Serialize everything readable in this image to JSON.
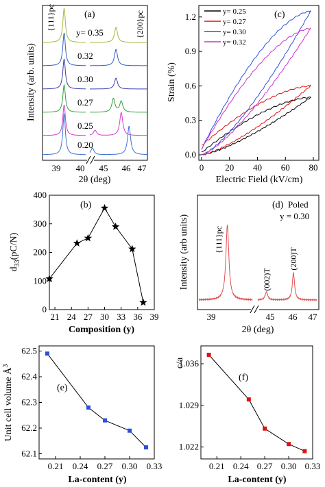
{
  "chart_data": [
    {
      "type": "line",
      "panel_label": "(a)",
      "xlabel": "2θ (deg)",
      "ylabel": "Intensity (arb. units)",
      "xticks": [
        "39",
        "40",
        "45",
        "46",
        "47"
      ],
      "peak_labels": [
        "{111}pc",
        "{200}pc"
      ],
      "series": [
        {
          "name": "y= 0.35",
          "color": "#9bbb3b",
          "peaks_2theta": [
            39.5,
            46.0
          ]
        },
        {
          "name": "0.32",
          "color": "#2f5fc4",
          "peaks_2theta": [
            39.5,
            46.0
          ]
        },
        {
          "name": "0.30",
          "color": "#3b3bb0",
          "peaks_2theta": [
            39.5,
            46.0
          ]
        },
        {
          "name": "0.27",
          "color": "#2f9f3f",
          "peaks_2theta": [
            39.5,
            45.9,
            46.2
          ]
        },
        {
          "name": "0.25",
          "color": "#d23cd2",
          "peaks_2theta": [
            39.5,
            45.2,
            46.2
          ]
        },
        {
          "name": "0.20",
          "color": "#3b6fd6",
          "peaks_2theta": [
            39.5,
            45.1,
            46.5
          ]
        }
      ]
    },
    {
      "type": "line",
      "panel_label": "(c)",
      "xlabel": "Electric Field (kV/cm)",
      "ylabel": "Strain (%)",
      "xlim": [
        0,
        80
      ],
      "ylim": [
        0,
        1.3
      ],
      "xticks": [
        "0",
        "20",
        "40",
        "60",
        "80"
      ],
      "yticks": [
        "0.0",
        "0.3",
        "0.6",
        "0.9",
        "1.2"
      ],
      "series": [
        {
          "name": "y= 0.25",
          "color": "#000000",
          "max_strain": 0.5,
          "upper_mid": 0.35,
          "lower_mid": 0.18,
          "remanent": 0.02
        },
        {
          "name": "y= 0.27",
          "color": "#e01010",
          "max_strain": 0.6,
          "upper_mid": 0.48,
          "lower_mid": 0.22,
          "remanent": 0.08
        },
        {
          "name": "y= 0.30",
          "color": "#3050e0",
          "max_strain": 1.25,
          "upper_mid": 0.9,
          "lower_mid": 0.5,
          "remanent": 0.05
        },
        {
          "name": "y= 0.32",
          "color": "#cc33cc",
          "max_strain": 1.1,
          "upper_mid": 0.88,
          "lower_mid": 0.55,
          "remanent": 0.05
        }
      ]
    },
    {
      "type": "line",
      "panel_label": "(b)",
      "xlabel": "Composition (y)",
      "ylabel": "d33(pC/N)",
      "xlim": [
        20,
        39
      ],
      "ylim": [
        0,
        400
      ],
      "xticks": [
        "21",
        "24",
        "27",
        "30",
        "33",
        "36",
        "39"
      ],
      "yticks": [
        "0",
        "100",
        "200",
        "300",
        "400"
      ],
      "x": [
        20,
        25,
        27,
        30,
        32,
        35,
        37
      ],
      "values": [
        108,
        232,
        250,
        355,
        290,
        212,
        25
      ]
    },
    {
      "type": "line",
      "panel_label": "(d)",
      "annotation": "Poled",
      "annotation2": "y = 0.30",
      "xlabel": "2θ (deg)",
      "ylabel": "Intensity (arb units)",
      "xticks": [
        "39",
        "45",
        "46",
        "47"
      ],
      "color": "#e05050",
      "peak_labels": [
        "{111}pc",
        "(002)T",
        "(200)T"
      ],
      "peaks_2theta": [
        39.5,
        45.05,
        46.15
      ]
    },
    {
      "type": "line",
      "panel_label": "(e)",
      "xlabel": "La-content (y)",
      "ylabel": "Unit cell volume Å3",
      "xlim": [
        0.19,
        0.33
      ],
      "ylim": [
        62.08,
        62.52
      ],
      "xticks": [
        "0.21",
        "0.24",
        "0.27",
        "0.30",
        "0.33"
      ],
      "yticks": [
        "62.1",
        "62.2",
        "62.3",
        "62.4",
        "62.5"
      ],
      "x": [
        0.2,
        0.25,
        0.27,
        0.3,
        0.32
      ],
      "values": [
        62.49,
        62.28,
        62.23,
        62.19,
        62.125
      ],
      "color": "#2b4fe0"
    },
    {
      "type": "line",
      "panel_label": "(f)",
      "xlabel": "La-content (y)",
      "ylabel": "c/a",
      "xlim": [
        0.19,
        0.33
      ],
      "ylim": [
        1.02,
        1.039
      ],
      "xticks": [
        "0.21",
        "0.24",
        "0.27",
        "0.30",
        "0.33"
      ],
      "yticks": [
        "1.022",
        "1.029",
        "1.036"
      ],
      "x": [
        0.2,
        0.25,
        0.27,
        0.3,
        0.32
      ],
      "values": [
        1.0375,
        1.03,
        1.0251,
        1.0225,
        1.0213
      ],
      "color": "#e01010"
    }
  ]
}
